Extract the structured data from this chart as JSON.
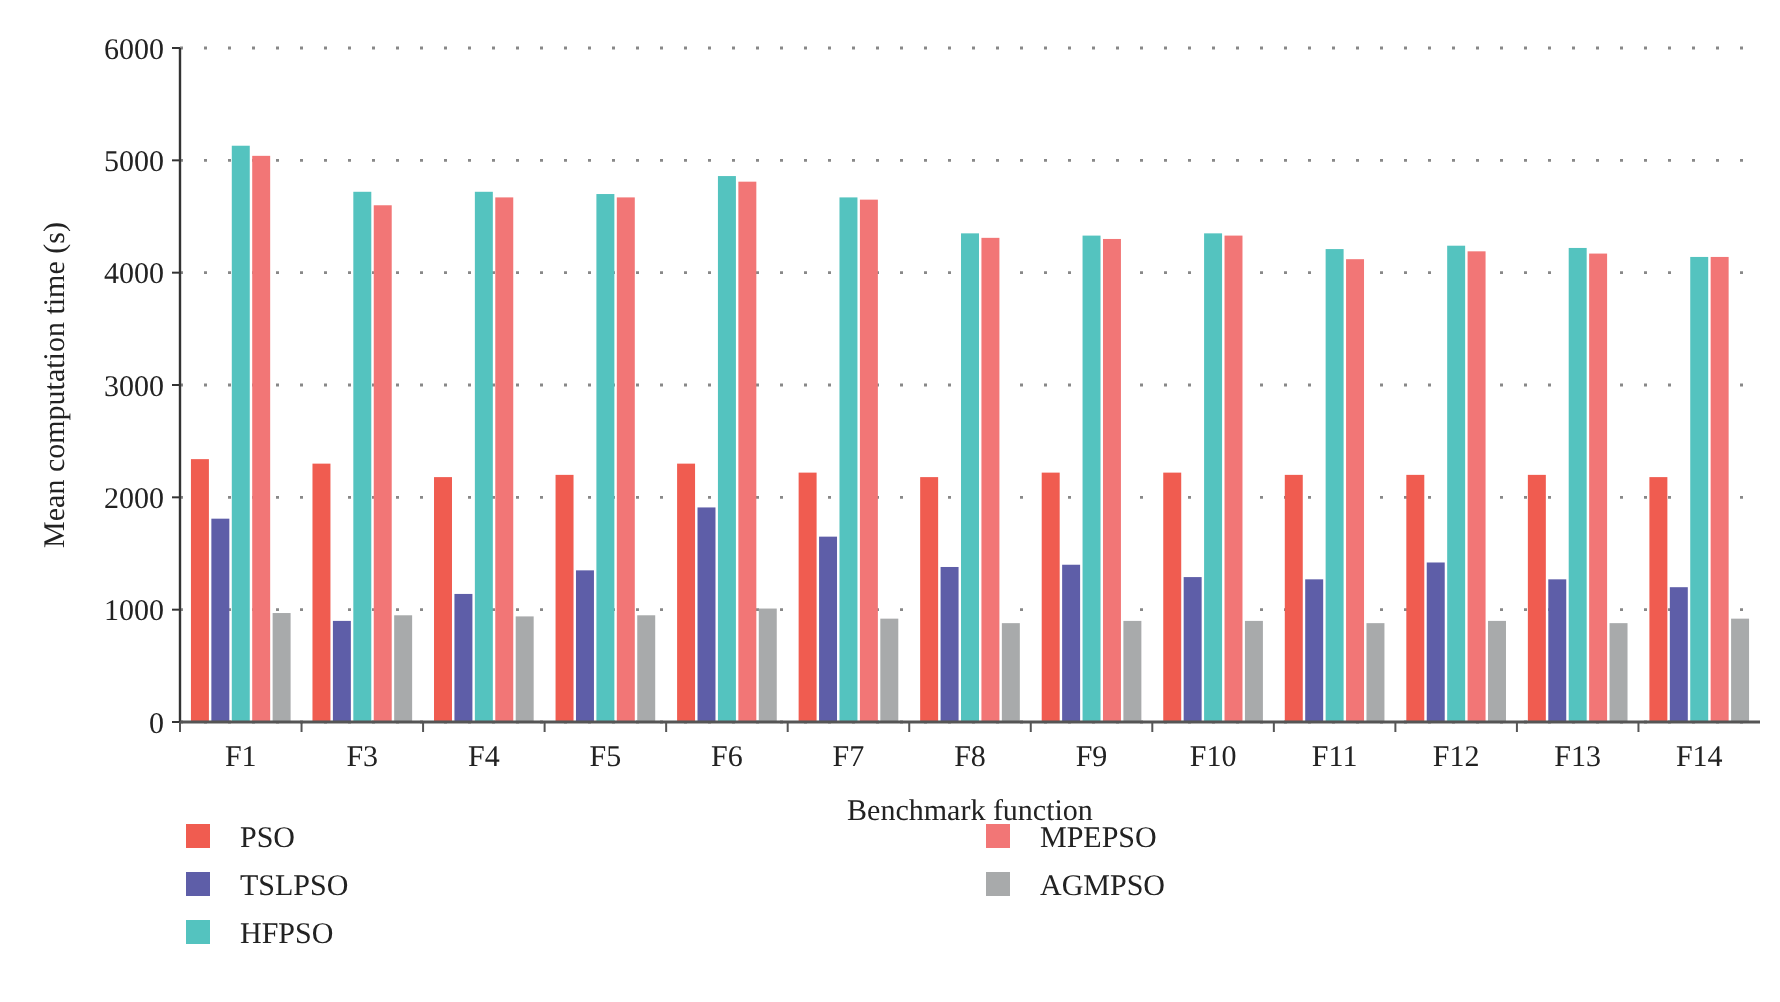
{
  "chart_data": {
    "type": "bar",
    "xlabel": "Benchmark function",
    "ylabel": "Mean computation time (s)",
    "categories": [
      "F1",
      "F3",
      "F4",
      "F5",
      "F6",
      "F7",
      "F8",
      "F9",
      "F10",
      "F11",
      "F12",
      "F13",
      "F14"
    ],
    "series": [
      {
        "name": "PSO",
        "color": "#f05c50",
        "values": [
          2340,
          2300,
          2180,
          2200,
          2300,
          2220,
          2180,
          2220,
          2220,
          2200,
          2200,
          2200,
          2180
        ]
      },
      {
        "name": "TSLPSO",
        "color": "#5e5ea8",
        "values": [
          1810,
          900,
          1140,
          1350,
          1910,
          1650,
          1380,
          1400,
          1290,
          1270,
          1420,
          1270,
          1200
        ]
      },
      {
        "name": "HFPSO",
        "color": "#54c3bf",
        "values": [
          5130,
          4720,
          4720,
          4700,
          4860,
          4670,
          4350,
          4330,
          4350,
          4210,
          4240,
          4220,
          4140
        ]
      },
      {
        "name": "MPEPSO",
        "color": "#f27676",
        "values": [
          5040,
          4600,
          4670,
          4670,
          4810,
          4650,
          4310,
          4300,
          4330,
          4120,
          4190,
          4170,
          4140
        ]
      },
      {
        "name": "AGMPSO",
        "color": "#a8aaab",
        "values": [
          970,
          950,
          940,
          950,
          1010,
          920,
          880,
          900,
          900,
          880,
          900,
          880,
          920
        ]
      }
    ],
    "ylim": [
      0,
      6000
    ],
    "yticks": [
      0,
      1000,
      2000,
      3000,
      4000,
      5000,
      6000
    ],
    "grid": "y",
    "legend": "bottom"
  }
}
